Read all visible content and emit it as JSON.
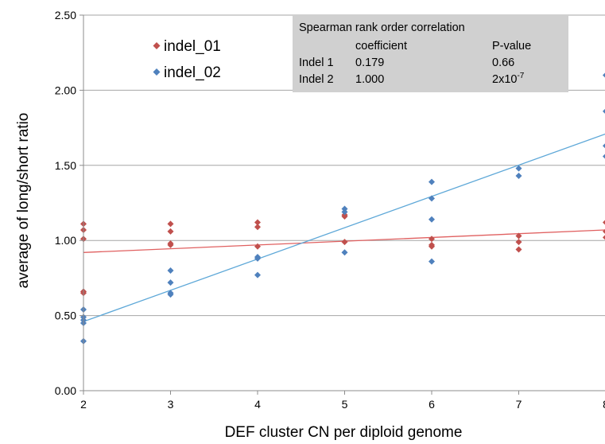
{
  "chart_data": {
    "type": "scatter",
    "title": "",
    "xlabel": "DEF cluster CN per diploid genome",
    "ylabel": "average of long/short ratio",
    "xlim": [
      2,
      8
    ],
    "ylim": [
      0,
      2.5
    ],
    "x_ticks": [
      "2",
      "3",
      "4",
      "5",
      "6",
      "7",
      "8"
    ],
    "y_ticks": [
      "0.00",
      "0.50",
      "1.00",
      "1.50",
      "2.00",
      "2.50"
    ],
    "grid": "horizontal",
    "legend_position": "top-left",
    "series": [
      {
        "name": "indel_01",
        "color": "#c0504d",
        "marker": "diamond",
        "points": [
          [
            2,
            1.11
          ],
          [
            2,
            1.07
          ],
          [
            2,
            1.01
          ],
          [
            2,
            0.66
          ],
          [
            2,
            0.65
          ],
          [
            3,
            1.11
          ],
          [
            3,
            1.06
          ],
          [
            3,
            0.98
          ],
          [
            3,
            0.97
          ],
          [
            4,
            1.12
          ],
          [
            4,
            1.09
          ],
          [
            4,
            0.96
          ],
          [
            5,
            1.17
          ],
          [
            5,
            1.16
          ],
          [
            5,
            0.99
          ],
          [
            6,
            1.01
          ],
          [
            6,
            0.97
          ],
          [
            6,
            0.96
          ],
          [
            7,
            1.03
          ],
          [
            7,
            0.99
          ],
          [
            7,
            0.94
          ],
          [
            8,
            1.12
          ],
          [
            8,
            1.06
          ],
          [
            8,
            1.02
          ]
        ],
        "trendline": [
          [
            2,
            0.92
          ],
          [
            8,
            1.07
          ]
        ]
      },
      {
        "name": "indel_02",
        "color": "#4f81bd",
        "marker": "diamond",
        "points": [
          [
            2,
            0.54
          ],
          [
            2,
            0.49
          ],
          [
            2,
            0.47
          ],
          [
            2,
            0.45
          ],
          [
            2,
            0.33
          ],
          [
            3,
            0.8
          ],
          [
            3,
            0.72
          ],
          [
            3,
            0.65
          ],
          [
            3,
            0.64
          ],
          [
            4,
            0.89
          ],
          [
            4,
            0.88
          ],
          [
            4,
            0.77
          ],
          [
            5,
            1.21
          ],
          [
            5,
            1.19
          ],
          [
            5,
            0.92
          ],
          [
            6,
            1.39
          ],
          [
            6,
            1.28
          ],
          [
            6,
            1.14
          ],
          [
            6,
            0.86
          ],
          [
            7,
            1.48
          ],
          [
            7,
            1.43
          ],
          [
            8,
            2.1
          ],
          [
            8,
            1.86
          ],
          [
            8,
            1.63
          ],
          [
            8,
            1.56
          ]
        ],
        "trendline": [
          [
            2,
            0.46
          ],
          [
            8,
            1.71
          ]
        ]
      }
    ],
    "annotation": {
      "title": "Spearman rank order correlation",
      "col_coefficient": "coefficient",
      "col_pvalue": "P-value",
      "rows": [
        {
          "label": "Indel 1",
          "coefficient": "0.179",
          "pvalue": "0.66",
          "pvalue_exp": ""
        },
        {
          "label": "Indel 2",
          "coefficient": "1.000",
          "pvalue": "2x10",
          "pvalue_exp": "-7"
        }
      ]
    }
  }
}
